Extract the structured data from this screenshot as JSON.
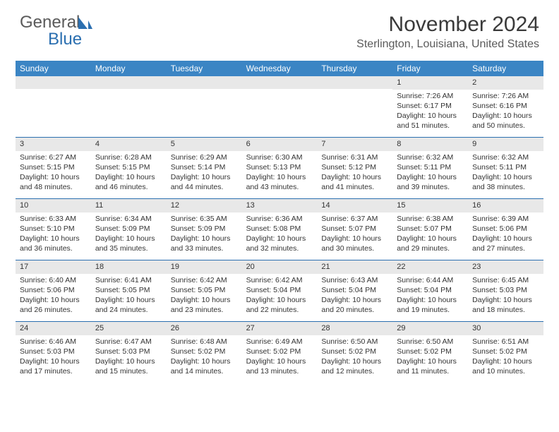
{
  "logo": {
    "part1": "General",
    "part2": "Blue"
  },
  "title": "November 2024",
  "location": "Sterlington, Louisiana, United States",
  "colors": {
    "header_bg": "#3b85c4",
    "border": "#2b6fb0",
    "daynum_bg": "#e8e8e8",
    "text": "#333333",
    "title_text": "#3a3a3a",
    "subtitle_text": "#5a5a5a"
  },
  "day_headers": [
    "Sunday",
    "Monday",
    "Tuesday",
    "Wednesday",
    "Thursday",
    "Friday",
    "Saturday"
  ],
  "weeks": [
    [
      {
        "n": "",
        "sr": "",
        "ss": "",
        "dl": ""
      },
      {
        "n": "",
        "sr": "",
        "ss": "",
        "dl": ""
      },
      {
        "n": "",
        "sr": "",
        "ss": "",
        "dl": ""
      },
      {
        "n": "",
        "sr": "",
        "ss": "",
        "dl": ""
      },
      {
        "n": "",
        "sr": "",
        "ss": "",
        "dl": ""
      },
      {
        "n": "1",
        "sr": "Sunrise: 7:26 AM",
        "ss": "Sunset: 6:17 PM",
        "dl": "Daylight: 10 hours and 51 minutes."
      },
      {
        "n": "2",
        "sr": "Sunrise: 7:26 AM",
        "ss": "Sunset: 6:16 PM",
        "dl": "Daylight: 10 hours and 50 minutes."
      }
    ],
    [
      {
        "n": "3",
        "sr": "Sunrise: 6:27 AM",
        "ss": "Sunset: 5:15 PM",
        "dl": "Daylight: 10 hours and 48 minutes."
      },
      {
        "n": "4",
        "sr": "Sunrise: 6:28 AM",
        "ss": "Sunset: 5:15 PM",
        "dl": "Daylight: 10 hours and 46 minutes."
      },
      {
        "n": "5",
        "sr": "Sunrise: 6:29 AM",
        "ss": "Sunset: 5:14 PM",
        "dl": "Daylight: 10 hours and 44 minutes."
      },
      {
        "n": "6",
        "sr": "Sunrise: 6:30 AM",
        "ss": "Sunset: 5:13 PM",
        "dl": "Daylight: 10 hours and 43 minutes."
      },
      {
        "n": "7",
        "sr": "Sunrise: 6:31 AM",
        "ss": "Sunset: 5:12 PM",
        "dl": "Daylight: 10 hours and 41 minutes."
      },
      {
        "n": "8",
        "sr": "Sunrise: 6:32 AM",
        "ss": "Sunset: 5:11 PM",
        "dl": "Daylight: 10 hours and 39 minutes."
      },
      {
        "n": "9",
        "sr": "Sunrise: 6:32 AM",
        "ss": "Sunset: 5:11 PM",
        "dl": "Daylight: 10 hours and 38 minutes."
      }
    ],
    [
      {
        "n": "10",
        "sr": "Sunrise: 6:33 AM",
        "ss": "Sunset: 5:10 PM",
        "dl": "Daylight: 10 hours and 36 minutes."
      },
      {
        "n": "11",
        "sr": "Sunrise: 6:34 AM",
        "ss": "Sunset: 5:09 PM",
        "dl": "Daylight: 10 hours and 35 minutes."
      },
      {
        "n": "12",
        "sr": "Sunrise: 6:35 AM",
        "ss": "Sunset: 5:09 PM",
        "dl": "Daylight: 10 hours and 33 minutes."
      },
      {
        "n": "13",
        "sr": "Sunrise: 6:36 AM",
        "ss": "Sunset: 5:08 PM",
        "dl": "Daylight: 10 hours and 32 minutes."
      },
      {
        "n": "14",
        "sr": "Sunrise: 6:37 AM",
        "ss": "Sunset: 5:07 PM",
        "dl": "Daylight: 10 hours and 30 minutes."
      },
      {
        "n": "15",
        "sr": "Sunrise: 6:38 AM",
        "ss": "Sunset: 5:07 PM",
        "dl": "Daylight: 10 hours and 29 minutes."
      },
      {
        "n": "16",
        "sr": "Sunrise: 6:39 AM",
        "ss": "Sunset: 5:06 PM",
        "dl": "Daylight: 10 hours and 27 minutes."
      }
    ],
    [
      {
        "n": "17",
        "sr": "Sunrise: 6:40 AM",
        "ss": "Sunset: 5:06 PM",
        "dl": "Daylight: 10 hours and 26 minutes."
      },
      {
        "n": "18",
        "sr": "Sunrise: 6:41 AM",
        "ss": "Sunset: 5:05 PM",
        "dl": "Daylight: 10 hours and 24 minutes."
      },
      {
        "n": "19",
        "sr": "Sunrise: 6:42 AM",
        "ss": "Sunset: 5:05 PM",
        "dl": "Daylight: 10 hours and 23 minutes."
      },
      {
        "n": "20",
        "sr": "Sunrise: 6:42 AM",
        "ss": "Sunset: 5:04 PM",
        "dl": "Daylight: 10 hours and 22 minutes."
      },
      {
        "n": "21",
        "sr": "Sunrise: 6:43 AM",
        "ss": "Sunset: 5:04 PM",
        "dl": "Daylight: 10 hours and 20 minutes."
      },
      {
        "n": "22",
        "sr": "Sunrise: 6:44 AM",
        "ss": "Sunset: 5:04 PM",
        "dl": "Daylight: 10 hours and 19 minutes."
      },
      {
        "n": "23",
        "sr": "Sunrise: 6:45 AM",
        "ss": "Sunset: 5:03 PM",
        "dl": "Daylight: 10 hours and 18 minutes."
      }
    ],
    [
      {
        "n": "24",
        "sr": "Sunrise: 6:46 AM",
        "ss": "Sunset: 5:03 PM",
        "dl": "Daylight: 10 hours and 17 minutes."
      },
      {
        "n": "25",
        "sr": "Sunrise: 6:47 AM",
        "ss": "Sunset: 5:03 PM",
        "dl": "Daylight: 10 hours and 15 minutes."
      },
      {
        "n": "26",
        "sr": "Sunrise: 6:48 AM",
        "ss": "Sunset: 5:02 PM",
        "dl": "Daylight: 10 hours and 14 minutes."
      },
      {
        "n": "27",
        "sr": "Sunrise: 6:49 AM",
        "ss": "Sunset: 5:02 PM",
        "dl": "Daylight: 10 hours and 13 minutes."
      },
      {
        "n": "28",
        "sr": "Sunrise: 6:50 AM",
        "ss": "Sunset: 5:02 PM",
        "dl": "Daylight: 10 hours and 12 minutes."
      },
      {
        "n": "29",
        "sr": "Sunrise: 6:50 AM",
        "ss": "Sunset: 5:02 PM",
        "dl": "Daylight: 10 hours and 11 minutes."
      },
      {
        "n": "30",
        "sr": "Sunrise: 6:51 AM",
        "ss": "Sunset: 5:02 PM",
        "dl": "Daylight: 10 hours and 10 minutes."
      }
    ]
  ]
}
